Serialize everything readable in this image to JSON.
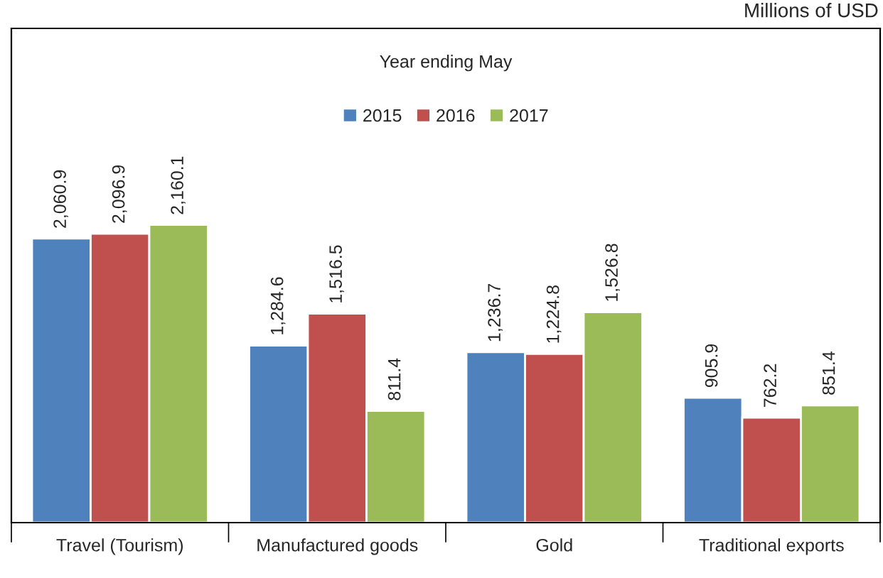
{
  "chart_data": {
    "type": "bar",
    "title": "Year ending May",
    "categories": [
      "Travel (Tourism)",
      "Manufactured goods",
      "Gold",
      "Traditional exports"
    ],
    "series": [
      {
        "name": "2015",
        "color": "#4f81bd",
        "values": [
          2060.9,
          1284.6,
          1236.7,
          905.9
        ],
        "value_labels": [
          "2,060.9",
          "1,284.6",
          "1,236.7",
          "905.9"
        ]
      },
      {
        "name": "2016",
        "color": "#c0504d",
        "values": [
          2096.9,
          1516.5,
          1224.8,
          762.2
        ],
        "value_labels": [
          "2,096.9",
          "1,516.5",
          "1,224.8",
          "762.2"
        ]
      },
      {
        "name": "2017",
        "color": "#9bbb59",
        "values": [
          2160.1,
          811.4,
          1526.8,
          851.4
        ],
        "value_labels": [
          "2,160.1",
          "811.4",
          "1,526.8",
          "851.4"
        ]
      }
    ],
    "legend": "top",
    "grid": false,
    "tick_labels": "x",
    "annotations": [
      "Millions of USD"
    ]
  }
}
